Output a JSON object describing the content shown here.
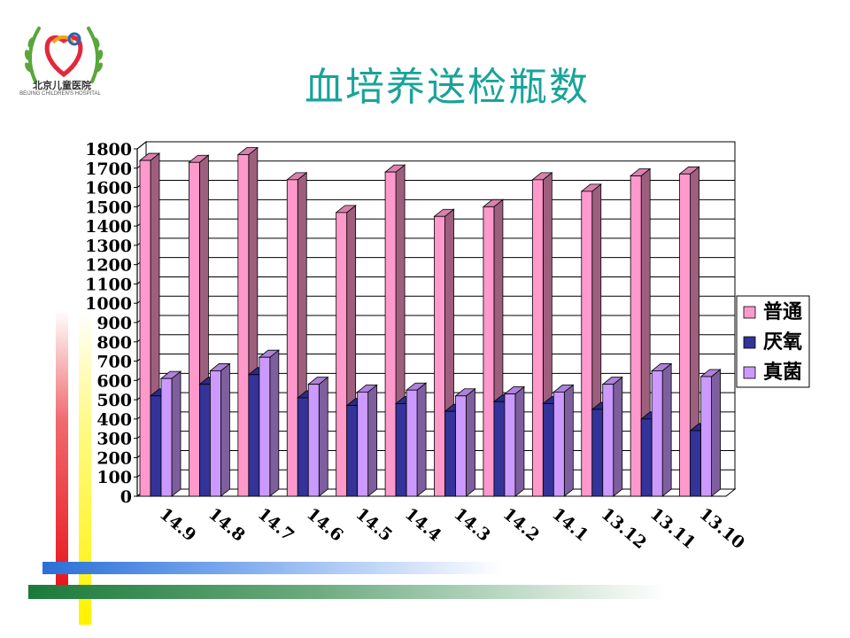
{
  "slide": {
    "title": "血培养送检瓶数",
    "logo_cn": "北京儿童医院",
    "logo_en": "BEIJING CHILDREN'S HOSPITAL"
  },
  "colors": {
    "title": "#1aa39a",
    "series": [
      "#ff99cc",
      "#333399",
      "#cc99ff"
    ],
    "deco_red": "#e8161c",
    "deco_yellow": "#fff200",
    "deco_blue": "#2a6fd6",
    "deco_green": "#1a7a3a"
  },
  "chart_data": {
    "type": "bar",
    "categories": [
      "14.9",
      "14.8",
      "14.7",
      "14.6",
      "14.5",
      "14.4",
      "14.3",
      "14.2",
      "14.1",
      "13.12",
      "13.11",
      "13.10"
    ],
    "series": [
      {
        "name": "普通",
        "values": [
          1740,
          1730,
          1770,
          1640,
          1470,
          1680,
          1450,
          1500,
          1640,
          1580,
          1660,
          1670
        ]
      },
      {
        "name": "厌氧",
        "values": [
          520,
          580,
          630,
          510,
          470,
          480,
          440,
          490,
          480,
          450,
          400,
          340
        ]
      },
      {
        "name": "真菌",
        "values": [
          610,
          650,
          720,
          580,
          540,
          550,
          520,
          530,
          540,
          580,
          650,
          620
        ]
      }
    ],
    "yticks": [
      "0",
      "100",
      "200",
      "300",
      "400",
      "500",
      "600",
      "700",
      "800",
      "900",
      "1000",
      "1100",
      "1200",
      "1300",
      "1400",
      "1500",
      "1600",
      "1700",
      "1800"
    ],
    "ylim": [
      0,
      1800
    ],
    "grid": true,
    "legend_position": "right"
  }
}
